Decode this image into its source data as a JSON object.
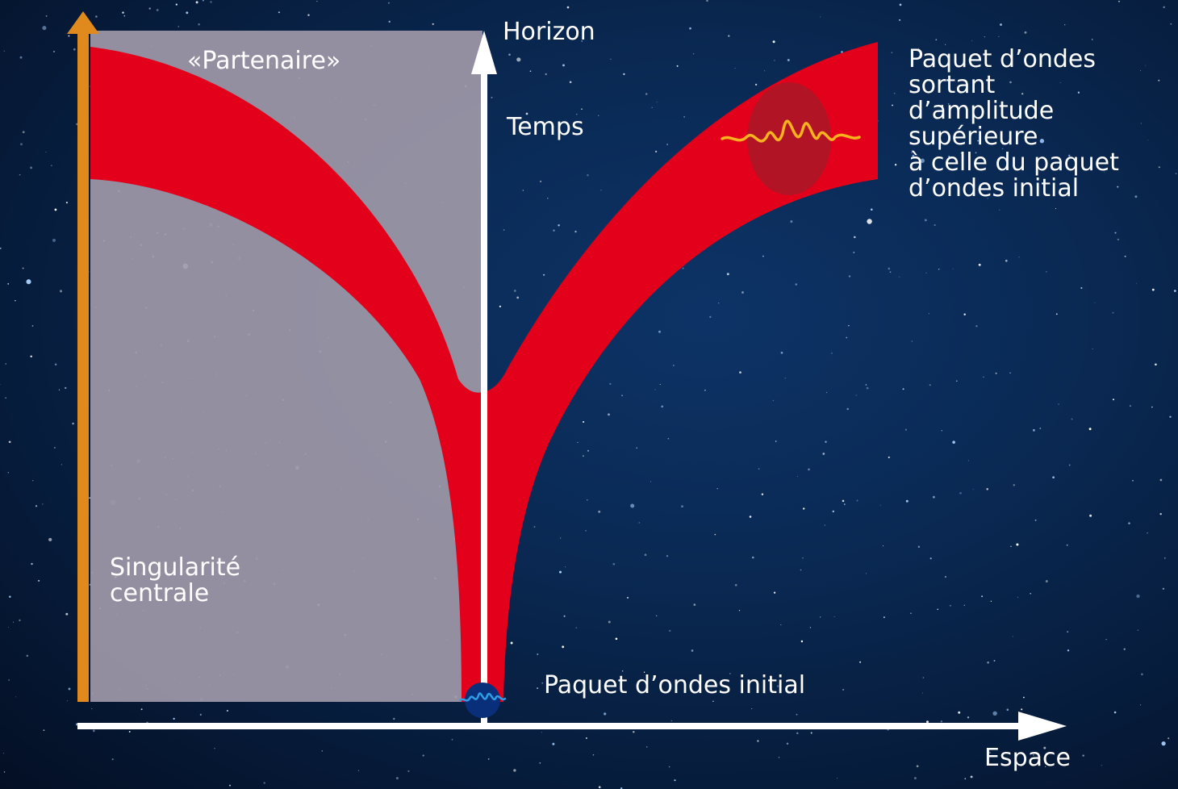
{
  "labels": {
    "horizon": "Horizon",
    "temps": "Temps",
    "partenaire": "«Partenaire»",
    "singularite": [
      "Singularité",
      "centrale"
    ],
    "paquet_sortant": [
      "Paquet d’ondes",
      "sortant",
      "d’amplitude",
      "supérieure",
      "à celle du paquet",
      "d’ondes initial"
    ],
    "paquet_initial": "Paquet d’ondes initial",
    "espace": "Espace"
  },
  "colors": {
    "band": "#e2001a",
    "interior": "#9e98a8",
    "singularity_axis": "#e08a1e",
    "axes": "#ffffff",
    "outgoing_wave": "#f7b21d",
    "initial_wave": "#2e9ee6"
  }
}
